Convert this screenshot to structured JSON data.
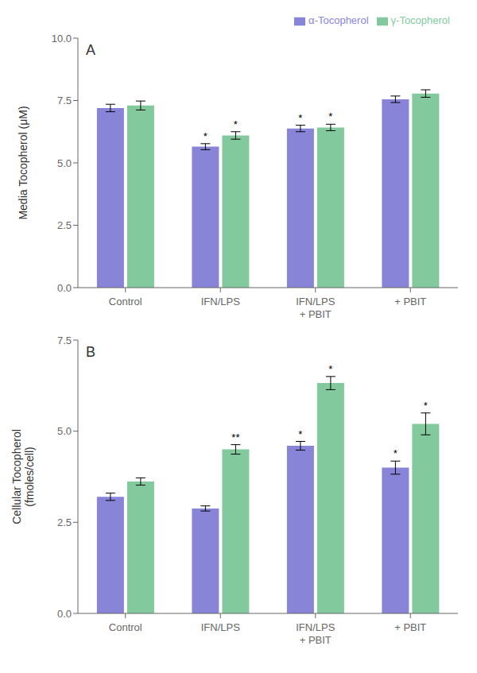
{
  "chart_data": [
    {
      "type": "bar",
      "title": "A",
      "ylabel": "Media Tocopherol (μM)",
      "categories": [
        "Control",
        "IFN/LPS",
        "IFN/LPS\n+ PBIT",
        "+ PBIT"
      ],
      "series": [
        {
          "name": "α-Tocopherol",
          "color": "#8884d8",
          "values": [
            7.2,
            5.65,
            6.38,
            7.55
          ],
          "errors": [
            0.15,
            0.12,
            0.13,
            0.13
          ],
          "sig_labels": [
            null,
            "*",
            "*",
            null
          ]
        },
        {
          "name": "γ-Tocopherol",
          "color": "#82ca9d",
          "values": [
            7.3,
            6.1,
            6.42,
            7.78
          ],
          "errors": [
            0.18,
            0.15,
            0.13,
            0.15
          ],
          "sig_labels": [
            null,
            "*",
            "*",
            null
          ]
        }
      ],
      "ylim": [
        0,
        10.0
      ],
      "yticks": [
        {
          "value": 0,
          "label": "0.0"
        },
        2.5,
        {
          "value": 5,
          "label": "5.0"
        },
        7.5,
        {
          "value": 10,
          "label": "10.0"
        }
      ],
      "grid": false,
      "legend": "upper right"
    },
    {
      "type": "bar",
      "title": "B",
      "ylabel": "Cellular Tocopherol\n(fmoles/cell)",
      "categories": [
        "Control",
        "IFN/LPS",
        "IFN/LPS\n+ PBIT",
        "+ PBIT"
      ],
      "series": [
        {
          "name": "α-Tocopherol",
          "color": "#8884d8",
          "values": [
            3.2,
            2.88,
            4.6,
            4.0
          ],
          "errors": [
            0.1,
            0.07,
            0.12,
            0.18
          ],
          "sig_labels": [
            null,
            null,
            "*",
            "*"
          ]
        },
        {
          "name": "γ-Tocopherol",
          "color": "#82ca9d",
          "values": [
            3.62,
            4.5,
            6.32,
            5.2
          ],
          "errors": [
            0.1,
            0.13,
            0.18,
            0.3
          ],
          "sig_labels": [
            null,
            "**",
            "*",
            "*"
          ]
        }
      ],
      "ylim": [
        0,
        7.5
      ],
      "yticks": [
        {
          "value": 0,
          "label": "0.0"
        },
        2.5,
        {
          "value": 5,
          "label": "5.0"
        },
        7.5
      ],
      "grid": false
    }
  ]
}
